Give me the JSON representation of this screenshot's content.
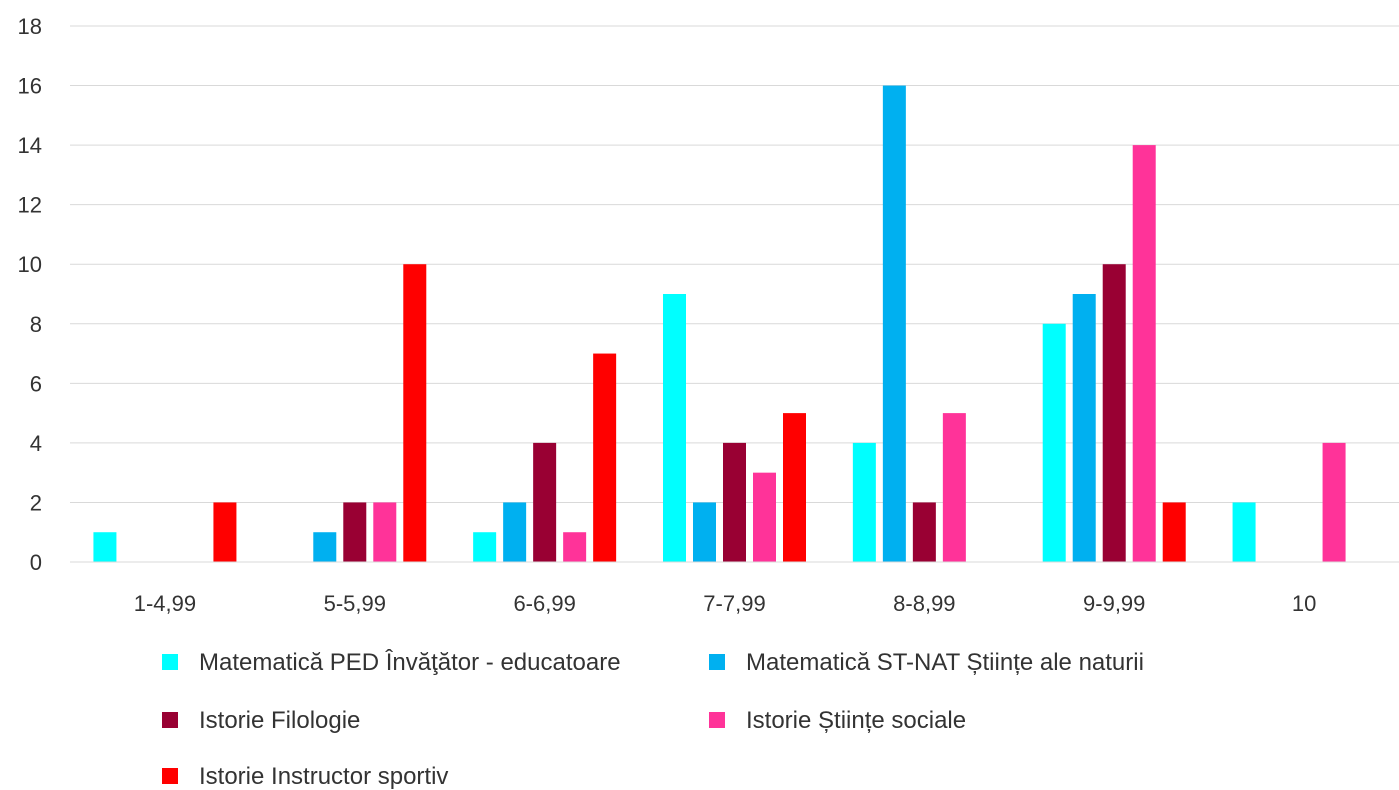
{
  "chart_data": {
    "type": "bar",
    "title": "",
    "xlabel": "",
    "ylabel": "",
    "ylim": [
      0,
      18
    ],
    "yticks": [
      0,
      2,
      4,
      6,
      8,
      10,
      12,
      14,
      16,
      18
    ],
    "grid": true,
    "legend_position": "bottom",
    "categories": [
      "1-4,99",
      "5-5,99",
      "6-6,99",
      "7-7,99",
      "8-8,99",
      "9-9,99",
      "10"
    ],
    "series": [
      {
        "name": "Matematică PED Învăţător - educatoare",
        "color": "#00FFFF",
        "values": [
          1,
          0,
          1,
          9,
          4,
          8,
          2
        ]
      },
      {
        "name": "Matematică ST-NAT Științe ale naturii",
        "color": "#00B0F0",
        "values": [
          0,
          1,
          2,
          2,
          16,
          9,
          0
        ]
      },
      {
        "name": "Istorie Filologie",
        "color": "#990033",
        "values": [
          0,
          2,
          4,
          4,
          2,
          10,
          0
        ]
      },
      {
        "name": "Istorie Științe sociale",
        "color": "#FF3399",
        "values": [
          0,
          2,
          1,
          3,
          5,
          14,
          4
        ]
      },
      {
        "name": "Istorie Instructor sportiv",
        "color": "#FF0000",
        "values": [
          2,
          10,
          7,
          5,
          0,
          2,
          0
        ]
      }
    ]
  }
}
